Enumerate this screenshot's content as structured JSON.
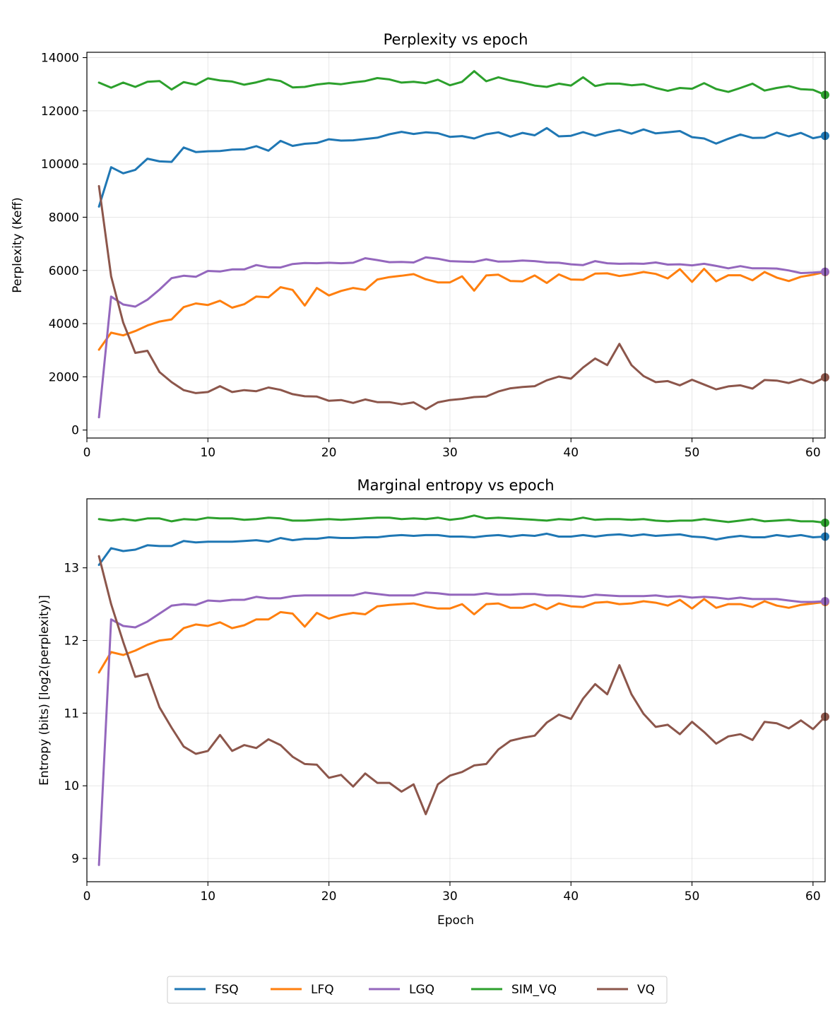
{
  "chart_data": [
    {
      "type": "line",
      "title": "Perplexity vs epoch",
      "xlabel": "",
      "ylabel": "Perplexity (Keff)",
      "xlim": [
        0,
        61
      ],
      "ylim": [
        -300,
        14200
      ],
      "xticks": [
        0,
        10,
        20,
        30,
        40,
        50,
        60
      ],
      "yticks": [
        0,
        2000,
        4000,
        6000,
        8000,
        10000,
        12000,
        14000
      ],
      "grid": true,
      "series": [
        {
          "name": "FSQ",
          "color": "#1f77b4",
          "values": [
            8400,
            9880,
            9650,
            9780,
            10200,
            10100,
            10080,
            10620,
            10450,
            10480,
            10490,
            10540,
            10550,
            10670,
            10500,
            10870,
            10680,
            10760,
            10790,
            10930,
            10880,
            10890,
            10940,
            10990,
            11120,
            11210,
            11130,
            11190,
            11160,
            11020,
            11050,
            10960,
            11120,
            11190,
            11030,
            11170,
            11080,
            11350,
            11040,
            11060,
            11200,
            11060,
            11190,
            11280,
            11140,
            11300,
            11150,
            11190,
            11240,
            11010,
            10960,
            10770,
            10950,
            11110,
            10980,
            10990,
            11180,
            11040,
            11170,
            10970,
            11060
          ]
        },
        {
          "name": "LFQ",
          "color": "#ff7f0e",
          "values": [
            3020,
            3660,
            3560,
            3720,
            3930,
            4080,
            4160,
            4620,
            4760,
            4700,
            4860,
            4600,
            4730,
            5020,
            4990,
            5370,
            5270,
            4680,
            5340,
            5060,
            5230,
            5340,
            5270,
            5660,
            5750,
            5800,
            5860,
            5670,
            5550,
            5550,
            5780,
            5240,
            5810,
            5840,
            5600,
            5590,
            5810,
            5530,
            5850,
            5660,
            5650,
            5880,
            5890,
            5790,
            5850,
            5940,
            5870,
            5700,
            6050,
            5570,
            6060,
            5590,
            5820,
            5820,
            5630,
            5940,
            5730,
            5600,
            5760,
            5840,
            5940
          ]
        },
        {
          "name": "LGQ",
          "color": "#9467bd",
          "values": [
            480,
            5020,
            4720,
            4640,
            4900,
            5280,
            5710,
            5800,
            5760,
            5980,
            5960,
            6040,
            6040,
            6200,
            6120,
            6110,
            6240,
            6280,
            6270,
            6290,
            6270,
            6290,
            6460,
            6390,
            6310,
            6320,
            6300,
            6490,
            6440,
            6350,
            6330,
            6320,
            6420,
            6330,
            6340,
            6370,
            6350,
            6300,
            6290,
            6230,
            6200,
            6350,
            6270,
            6250,
            6260,
            6250,
            6300,
            6220,
            6230,
            6190,
            6250,
            6170,
            6080,
            6160,
            6080,
            6080,
            6070,
            6000,
            5900,
            5920,
            5950
          ]
        },
        {
          "name": "SIM_VQ",
          "color": "#2ca02c",
          "values": [
            13060,
            12870,
            13060,
            12900,
            13090,
            13120,
            12800,
            13080,
            12980,
            13220,
            13140,
            13100,
            12980,
            13070,
            13190,
            13120,
            12880,
            12900,
            12990,
            13040,
            13000,
            13070,
            13120,
            13230,
            13180,
            13060,
            13090,
            13040,
            13170,
            12960,
            13090,
            13490,
            13110,
            13260,
            13140,
            13060,
            12950,
            12900,
            13020,
            12950,
            13260,
            12930,
            13020,
            13020,
            12960,
            13000,
            12860,
            12750,
            12860,
            12830,
            13040,
            12820,
            12710,
            12860,
            13020,
            12760,
            12860,
            12930,
            12810,
            12790,
            12600
          ]
        },
        {
          "name": "VQ",
          "color": "#8c564b",
          "values": [
            9170,
            5780,
            4040,
            2900,
            2980,
            2180,
            1800,
            1500,
            1390,
            1430,
            1650,
            1430,
            1500,
            1460,
            1600,
            1510,
            1350,
            1270,
            1260,
            1100,
            1130,
            1020,
            1150,
            1050,
            1050,
            970,
            1040,
            780,
            1040,
            1130,
            1170,
            1240,
            1260,
            1450,
            1570,
            1620,
            1650,
            1870,
            2010,
            1930,
            2350,
            2690,
            2440,
            3240,
            2440,
            2030,
            1800,
            1840,
            1680,
            1890,
            1710,
            1530,
            1640,
            1680,
            1560,
            1880,
            1860,
            1770,
            1910,
            1760,
            1980
          ]
        }
      ]
    },
    {
      "type": "line",
      "title": "Marginal entropy vs epoch",
      "xlabel": "Epoch",
      "ylabel": "Entropy (bits) [log2(perplexity)]",
      "xlim": [
        0,
        61
      ],
      "ylim": [
        8.68,
        13.95
      ],
      "xticks": [
        0,
        10,
        20,
        30,
        40,
        50,
        60
      ],
      "yticks": [
        9,
        10,
        11,
        12,
        13
      ],
      "grid": true,
      "series": [
        {
          "name": "FSQ",
          "color": "#1f77b4",
          "values": [
            13.04,
            13.27,
            13.23,
            13.25,
            13.31,
            13.3,
            13.3,
            13.37,
            13.35,
            13.36,
            13.36,
            13.36,
            13.37,
            13.38,
            13.36,
            13.41,
            13.38,
            13.4,
            13.4,
            13.42,
            13.41,
            13.41,
            13.42,
            13.42,
            13.44,
            13.45,
            13.44,
            13.45,
            13.45,
            13.43,
            13.43,
            13.42,
            13.44,
            13.45,
            13.43,
            13.45,
            13.44,
            13.47,
            13.43,
            13.43,
            13.45,
            13.43,
            13.45,
            13.46,
            13.44,
            13.46,
            13.44,
            13.45,
            13.46,
            13.43,
            13.42,
            13.39,
            13.42,
            13.44,
            13.42,
            13.42,
            13.45,
            13.43,
            13.45,
            13.42,
            13.43
          ]
        },
        {
          "name": "LFQ",
          "color": "#ff7f0e",
          "values": [
            11.56,
            11.84,
            11.8,
            11.86,
            11.94,
            12.0,
            12.02,
            12.17,
            12.22,
            12.2,
            12.25,
            12.17,
            12.21,
            12.29,
            12.29,
            12.39,
            12.37,
            12.19,
            12.38,
            12.3,
            12.35,
            12.38,
            12.36,
            12.47,
            12.49,
            12.5,
            12.51,
            12.47,
            12.44,
            12.44,
            12.5,
            12.36,
            12.5,
            12.51,
            12.45,
            12.45,
            12.5,
            12.43,
            12.51,
            12.47,
            12.46,
            12.52,
            12.53,
            12.5,
            12.51,
            12.54,
            12.52,
            12.48,
            12.56,
            12.44,
            12.57,
            12.45,
            12.5,
            12.5,
            12.46,
            12.54,
            12.48,
            12.45,
            12.49,
            12.51,
            12.53
          ]
        },
        {
          "name": "LGQ",
          "color": "#9467bd",
          "values": [
            8.91,
            12.29,
            12.2,
            12.18,
            12.26,
            12.37,
            12.48,
            12.5,
            12.49,
            12.55,
            12.54,
            12.56,
            12.56,
            12.6,
            12.58,
            12.58,
            12.61,
            12.62,
            12.62,
            12.62,
            12.62,
            12.62,
            12.66,
            12.64,
            12.62,
            12.62,
            12.62,
            12.66,
            12.65,
            12.63,
            12.63,
            12.63,
            12.65,
            12.63,
            12.63,
            12.64,
            12.64,
            12.62,
            12.62,
            12.61,
            12.6,
            12.63,
            12.62,
            12.61,
            12.61,
            12.61,
            12.62,
            12.6,
            12.61,
            12.59,
            12.6,
            12.59,
            12.57,
            12.59,
            12.57,
            12.57,
            12.57,
            12.55,
            12.53,
            12.53,
            12.54
          ]
        },
        {
          "name": "SIM_VQ",
          "color": "#2ca02c",
          "values": [
            13.67,
            13.65,
            13.67,
            13.65,
            13.68,
            13.68,
            13.64,
            13.67,
            13.66,
            13.69,
            13.68,
            13.68,
            13.66,
            13.67,
            13.69,
            13.68,
            13.65,
            13.65,
            13.66,
            13.67,
            13.66,
            13.67,
            13.68,
            13.69,
            13.69,
            13.67,
            13.68,
            13.67,
            13.69,
            13.66,
            13.68,
            13.72,
            13.68,
            13.69,
            13.68,
            13.67,
            13.66,
            13.65,
            13.67,
            13.66,
            13.69,
            13.66,
            13.67,
            13.67,
            13.66,
            13.67,
            13.65,
            13.64,
            13.65,
            13.65,
            13.67,
            13.65,
            13.63,
            13.65,
            13.67,
            13.64,
            13.65,
            13.66,
            13.64,
            13.64,
            13.62
          ]
        },
        {
          "name": "VQ",
          "color": "#8c564b",
          "values": [
            13.16,
            12.5,
            11.98,
            11.5,
            11.54,
            11.08,
            10.8,
            10.54,
            10.44,
            10.48,
            10.7,
            10.48,
            10.56,
            10.52,
            10.64,
            10.56,
            10.4,
            10.3,
            10.29,
            10.11,
            10.15,
            9.99,
            10.17,
            10.04,
            10.04,
            9.92,
            10.02,
            9.61,
            10.02,
            10.14,
            10.19,
            10.28,
            10.3,
            10.5,
            10.62,
            10.66,
            10.69,
            10.87,
            10.98,
            10.92,
            11.2,
            11.4,
            11.26,
            11.66,
            11.26,
            10.99,
            10.81,
            10.84,
            10.71,
            10.88,
            10.74,
            10.58,
            10.68,
            10.71,
            10.63,
            10.88,
            10.86,
            10.79,
            10.9,
            10.78,
            10.95
          ]
        }
      ]
    }
  ],
  "legend": {
    "placement": "bottom-center",
    "entries": [
      "FSQ",
      "LFQ",
      "LGQ",
      "SIM_VQ",
      "VQ"
    ]
  }
}
